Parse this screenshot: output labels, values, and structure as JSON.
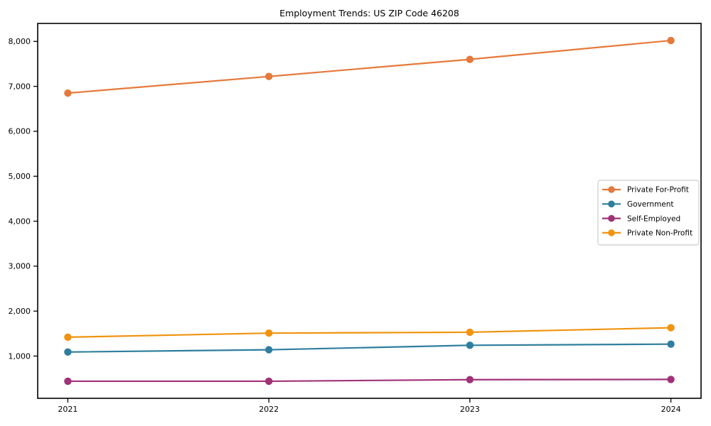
{
  "chart_data": {
    "type": "line",
    "title": "Employment Trends: US ZIP Code 46208",
    "xlabel": "",
    "ylabel": "",
    "categories": [
      "2021",
      "2022",
      "2023",
      "2024"
    ],
    "series": [
      {
        "name": "Private For-Profit",
        "color": "#E5793B",
        "values": [
          6850,
          7220,
          7600,
          8020
        ]
      },
      {
        "name": "Government",
        "color": "#2F7E9E",
        "values": [
          1090,
          1140,
          1240,
          1265
        ]
      },
      {
        "name": "Self-Employed",
        "color": "#A03278",
        "values": [
          440,
          440,
          475,
          480
        ]
      },
      {
        "name": "Private Non-Profit",
        "color": "#F0930E",
        "values": [
          1420,
          1510,
          1530,
          1630
        ]
      }
    ],
    "yticks": {
      "values": [
        1000,
        2000,
        3000,
        4000,
        5000,
        6000,
        7000,
        8000
      ],
      "labels": [
        "1,000",
        "2,000",
        "3,000",
        "4,000",
        "5,000",
        "6,000",
        "7,000",
        "8,000"
      ]
    },
    "ylim": [
      60,
      8400
    ],
    "grid": false,
    "legend": {
      "position": "center-right",
      "items": [
        "Private For-Profit",
        "Government",
        "Self-Employed",
        "Private Non-Profit"
      ]
    },
    "axis_color": "#000000",
    "legend_border_color": "#cccccc",
    "background_color": "#ffffff"
  }
}
